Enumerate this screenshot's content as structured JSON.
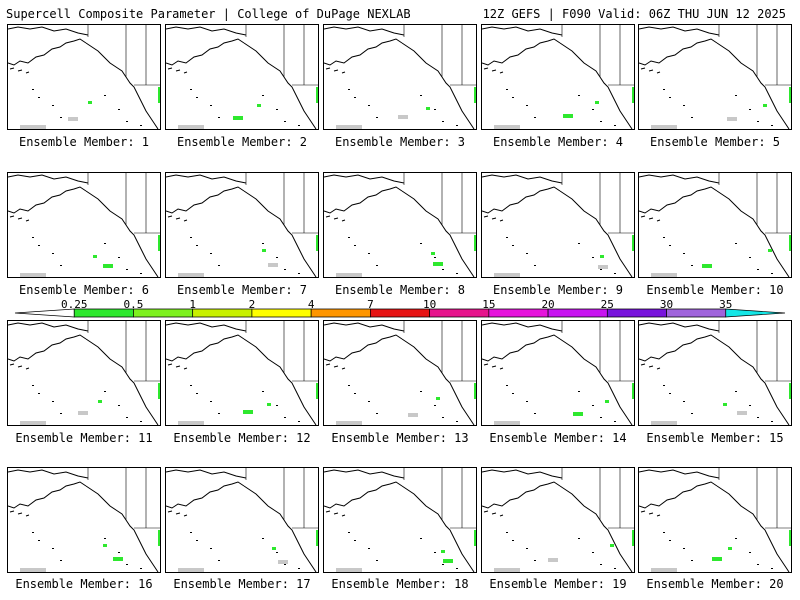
{
  "header": {
    "title": "Supercell Composite Parameter | College of DuPage NEXLAB",
    "run_info": "12Z GEFS | F090 Valid: 06Z THU JUN 12 2025"
  },
  "map": {
    "region": "Northeast Pacific and western North America",
    "ocean_color": "#ffffff",
    "coast_color": "#000000"
  },
  "panels": [
    {
      "label": "Ensemble Member: 1"
    },
    {
      "label": "Ensemble Member: 2"
    },
    {
      "label": "Ensemble Member: 3"
    },
    {
      "label": "Ensemble Member: 4"
    },
    {
      "label": "Ensemble Member: 5"
    },
    {
      "label": "Ensemble Member: 6"
    },
    {
      "label": "Ensemble Member: 7"
    },
    {
      "label": "Ensemble Member: 8"
    },
    {
      "label": "Ensemble Member: 9"
    },
    {
      "label": "Ensemble Member: 10"
    },
    {
      "label": "Ensemble Member: 11"
    },
    {
      "label": "Ensemble Member: 12"
    },
    {
      "label": "Ensemble Member: 13"
    },
    {
      "label": "Ensemble Member: 14"
    },
    {
      "label": "Ensemble Member: 15"
    },
    {
      "label": "Ensemble Member: 16"
    },
    {
      "label": "Ensemble Member: 17"
    },
    {
      "label": "Ensemble Member: 18"
    },
    {
      "label": "Ensemble Member: 19"
    },
    {
      "label": "Ensemble Member: 20"
    }
  ],
  "colorbar": {
    "labels": [
      "0.25",
      "0.5",
      "1",
      "2",
      "4",
      "7",
      "10",
      "15",
      "20",
      "25",
      "30",
      "35"
    ],
    "colors": [
      "#c8c8c8",
      "#2ee82e",
      "#7ef01e",
      "#c8f000",
      "#ffff00",
      "#ff9600",
      "#e61414",
      "#e6148c",
      "#e614dc",
      "#c814f0",
      "#7814dc",
      "#a064dc",
      "#14e6e6"
    ]
  }
}
